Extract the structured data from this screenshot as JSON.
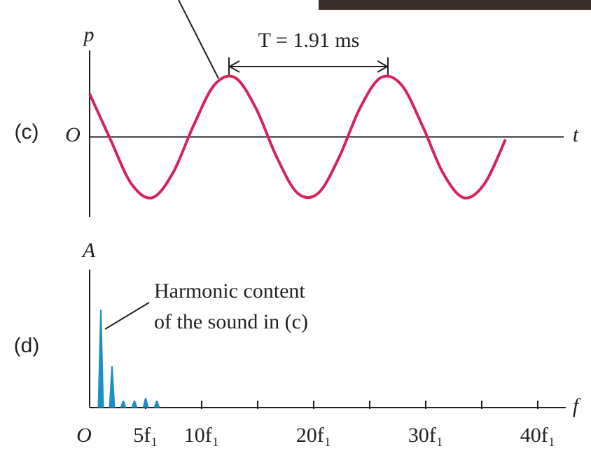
{
  "chart_data": [
    {
      "type": "line",
      "panel_label": "(c)",
      "y_label": "p",
      "x_label": "t",
      "origin_label": "O",
      "annotation": "T = 1.91 ms",
      "color": "#d6245a",
      "x": [
        0,
        0.25,
        0.5,
        0.75,
        1.0,
        1.25,
        1.5,
        1.75,
        2.0,
        2.25,
        2.5,
        2.75,
        3.0,
        3.25,
        3.5,
        3.75,
        4.0,
        4.25,
        4.5,
        4.75,
        5.0
      ],
      "values": [
        0.704,
        -0.041,
        -0.761,
        -0.993,
        -0.592,
        0.187,
        0.848,
        0.966,
        0.466,
        -0.331,
        -0.917,
        -0.917,
        -0.332,
        0.468,
        0.966,
        0.848,
        0.187,
        -0.592,
        -0.993,
        -0.761,
        -0.041
      ],
      "xlim": [
        0,
        5.7
      ],
      "ylim": [
        -1.4,
        1.8
      ]
    },
    {
      "type": "spectrum",
      "panel_label": "(d)",
      "y_label": "A",
      "x_label": "f",
      "annotation": [
        "Harmonic content",
        "of the sound in (c)"
      ],
      "color": "#1a8fc9",
      "x": [
        1,
        2,
        3,
        4,
        5,
        6
      ],
      "values": [
        0.71,
        0.3,
        0.05,
        0.05,
        0.07,
        0.05
      ],
      "xlim": [
        0,
        42.5
      ],
      "ylim": [
        0,
        1
      ],
      "xticks": [
        {
          "value": 0,
          "label": "O"
        },
        {
          "value": 5,
          "label": "5f₁"
        },
        {
          "value": 10,
          "label": "10f₁"
        },
        {
          "value": 15,
          "label": null
        },
        {
          "value": 20,
          "label": "20f₁"
        },
        {
          "value": 25,
          "label": null
        },
        {
          "value": 30,
          "label": "30f₁"
        },
        {
          "value": 35,
          "label": null
        },
        {
          "value": 40,
          "label": "40f₁"
        }
      ]
    }
  ]
}
